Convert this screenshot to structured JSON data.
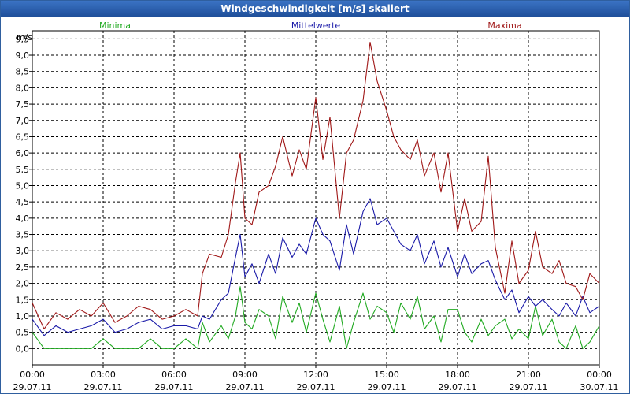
{
  "window": {
    "title": "Windgeschwindigkeit [m/s] skaliert"
  },
  "colors": {
    "minima": "#22aa22",
    "mittelwerte": "#1a1aa8",
    "maxima": "#a01818",
    "grid": "#000000",
    "titlebar": "#2f66b3"
  },
  "chart_data": {
    "type": "line",
    "title": "Windgeschwindigkeit [m/s] skaliert",
    "ylabel": "m/s",
    "xlabel": "",
    "ylim": [
      -0.5,
      9.75
    ],
    "xlim": [
      0,
      24
    ],
    "yticks": [
      "0,0",
      "0,5",
      "1,0",
      "1,5",
      "2,0",
      "2,5",
      "3,0",
      "3,5",
      "4,0",
      "4,5",
      "5,0",
      "5,5",
      "6,0",
      "6,5",
      "7,0",
      "7,5",
      "8,0",
      "8,5",
      "9,0",
      "9,5"
    ],
    "xticks": [
      {
        "time": "00:00",
        "date": "29.07.11"
      },
      {
        "time": "03:00",
        "date": "29.07.11"
      },
      {
        "time": "06:00",
        "date": "29.07.11"
      },
      {
        "time": "09:00",
        "date": "29.07.11"
      },
      {
        "time": "12:00",
        "date": "29.07.11"
      },
      {
        "time": "15:00",
        "date": "29.07.11"
      },
      {
        "time": "18:00",
        "date": "29.07.11"
      },
      {
        "time": "21:00",
        "date": "29.07.11"
      },
      {
        "time": "00:00",
        "date": "30.07.11"
      }
    ],
    "grid": true,
    "legend": [
      {
        "name": "Minima",
        "position": "top-left"
      },
      {
        "name": "Mittelwerte",
        "position": "top-center"
      },
      {
        "name": "Maxima",
        "position": "top-right"
      }
    ],
    "series": [
      {
        "name": "Minima",
        "x": [
          0,
          0.5,
          1,
          1.5,
          2,
          2.5,
          3,
          3.5,
          4,
          4.5,
          5,
          5.5,
          6,
          6.5,
          7,
          7.2,
          7.5,
          8,
          8.3,
          8.6,
          8.8,
          9,
          9.3,
          9.6,
          10,
          10.3,
          10.6,
          11,
          11.3,
          11.6,
          12,
          12.3,
          12.6,
          13,
          13.3,
          13.6,
          14,
          14.3,
          14.6,
          15,
          15.3,
          15.6,
          16,
          16.3,
          16.6,
          17,
          17.3,
          17.6,
          18,
          18.3,
          18.6,
          19,
          19.3,
          19.6,
          20,
          20.3,
          20.6,
          21,
          21.3,
          21.6,
          22,
          22.3,
          22.6,
          23,
          23.3,
          23.6,
          24
        ],
        "values": [
          0.5,
          0.0,
          0.0,
          0.0,
          0.0,
          0.0,
          0.3,
          0.0,
          0.0,
          0.0,
          0.3,
          0.0,
          0.0,
          0.3,
          0.0,
          0.8,
          0.2,
          0.7,
          0.3,
          1.0,
          1.9,
          0.8,
          0.6,
          1.2,
          1.0,
          0.3,
          1.6,
          0.8,
          1.4,
          0.5,
          1.7,
          0.9,
          0.2,
          1.3,
          0.0,
          0.8,
          1.7,
          0.9,
          1.3,
          1.1,
          0.5,
          1.4,
          0.9,
          1.6,
          0.6,
          1.0,
          0.2,
          1.2,
          1.2,
          0.5,
          0.2,
          0.9,
          0.4,
          0.7,
          0.9,
          0.3,
          0.6,
          0.3,
          1.3,
          0.4,
          0.9,
          0.2,
          0.0,
          0.7,
          0.0,
          0.2,
          0.7
        ]
      },
      {
        "name": "Mittelwerte",
        "x": [
          0,
          0.5,
          1,
          1.5,
          2,
          2.5,
          3,
          3.5,
          4,
          4.5,
          5,
          5.5,
          6,
          6.5,
          7,
          7.2,
          7.5,
          8,
          8.3,
          8.6,
          8.8,
          9,
          9.3,
          9.6,
          10,
          10.3,
          10.6,
          11,
          11.3,
          11.6,
          12,
          12.3,
          12.6,
          13,
          13.3,
          13.6,
          14,
          14.3,
          14.6,
          15,
          15.3,
          15.6,
          16,
          16.3,
          16.6,
          17,
          17.3,
          17.6,
          18,
          18.3,
          18.6,
          19,
          19.3,
          19.6,
          20,
          20.3,
          20.6,
          21,
          21.3,
          21.6,
          22,
          22.3,
          22.6,
          23,
          23.3,
          23.6,
          24
        ],
        "values": [
          0.9,
          0.4,
          0.7,
          0.5,
          0.6,
          0.7,
          0.9,
          0.5,
          0.6,
          0.8,
          0.9,
          0.6,
          0.7,
          0.7,
          0.6,
          1.0,
          0.9,
          1.5,
          1.7,
          2.8,
          3.5,
          2.2,
          2.6,
          2.0,
          2.9,
          2.3,
          3.4,
          2.8,
          3.2,
          2.9,
          4.0,
          3.5,
          3.3,
          2.4,
          3.8,
          2.9,
          4.2,
          4.6,
          3.8,
          4.0,
          3.6,
          3.2,
          3.0,
          3.5,
          2.6,
          3.3,
          2.5,
          3.1,
          2.2,
          2.9,
          2.3,
          2.6,
          2.7,
          2.1,
          1.5,
          1.8,
          1.1,
          1.6,
          1.3,
          1.5,
          1.2,
          1.0,
          1.4,
          1.0,
          1.6,
          1.1,
          1.3
        ]
      },
      {
        "name": "Maxima",
        "x": [
          0,
          0.5,
          1,
          1.5,
          2,
          2.5,
          3,
          3.5,
          4,
          4.5,
          5,
          5.5,
          6,
          6.5,
          7,
          7.2,
          7.5,
          8,
          8.3,
          8.6,
          8.8,
          9,
          9.3,
          9.6,
          10,
          10.3,
          10.6,
          11,
          11.3,
          11.6,
          12,
          12.3,
          12.6,
          13,
          13.3,
          13.6,
          14,
          14.3,
          14.6,
          15,
          15.3,
          15.6,
          16,
          16.3,
          16.6,
          17,
          17.3,
          17.6,
          18,
          18.3,
          18.6,
          19,
          19.3,
          19.6,
          20,
          20.3,
          20.6,
          21,
          21.3,
          21.6,
          22,
          22.3,
          22.6,
          23,
          23.3,
          23.6,
          24
        ],
        "values": [
          1.4,
          0.6,
          1.1,
          0.9,
          1.2,
          1.0,
          1.4,
          0.8,
          1.0,
          1.3,
          1.2,
          0.9,
          1.0,
          1.2,
          1.0,
          2.3,
          2.9,
          2.8,
          3.5,
          5.1,
          6.0,
          4.0,
          3.8,
          4.8,
          5.0,
          5.6,
          6.5,
          5.3,
          6.1,
          5.5,
          7.7,
          5.8,
          7.1,
          4.0,
          6.0,
          6.4,
          7.6,
          9.4,
          8.2,
          7.3,
          6.5,
          6.1,
          5.8,
          6.4,
          5.3,
          6.0,
          4.8,
          6.0,
          3.6,
          4.6,
          3.6,
          3.9,
          5.9,
          3.1,
          1.7,
          3.3,
          2.0,
          2.4,
          3.6,
          2.5,
          2.3,
          2.7,
          2.0,
          1.9,
          1.5,
          2.3,
          2.0
        ]
      }
    ]
  }
}
